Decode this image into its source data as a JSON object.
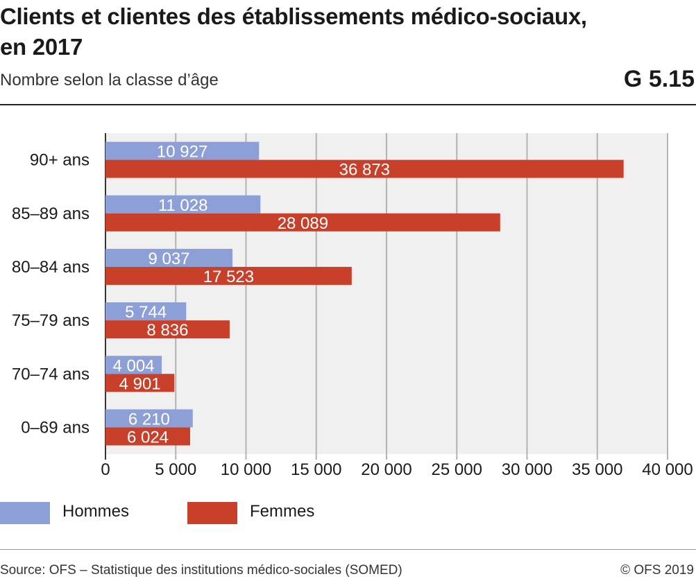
{
  "header": {
    "title": "Clients et clientes des établissements médico-sociaux, en 2017",
    "subtitle": "Nombre selon la classe d’âge",
    "graphic_number": "G 5.15"
  },
  "footer": {
    "source": "Source: OFS – Statistique des institutions médico-sociales (SOMED)",
    "copyright": "© OFS 2019"
  },
  "colors": {
    "hommes": "#8c9fd6",
    "femmes": "#c8402a",
    "plot_bg": "#f0f0f0",
    "grid": "#b3b3b3"
  },
  "chart_data": {
    "type": "bar",
    "orientation": "horizontal",
    "categories": [
      "90+ ans",
      "85–89 ans",
      "80–84 ans",
      "75–79 ans",
      "70–74 ans",
      "0–69 ans"
    ],
    "series": [
      {
        "name": "Hommes",
        "values": [
          10927,
          11028,
          9037,
          5744,
          4004,
          6210
        ],
        "labels": [
          "10 927",
          "11 028",
          "9 037",
          "5 744",
          "4 004",
          "6 210"
        ]
      },
      {
        "name": "Femmes",
        "values": [
          36873,
          28089,
          17523,
          8836,
          4901,
          6024
        ],
        "labels": [
          "36 873",
          "28 089",
          "17 523",
          "8 836",
          "4 901",
          "6 024"
        ]
      }
    ],
    "xlim": [
      0,
      40000
    ],
    "xticks": [
      0,
      5000,
      10000,
      15000,
      20000,
      25000,
      30000,
      35000,
      40000
    ],
    "xtick_labels": [
      "0",
      "5 000",
      "10 000",
      "15 000",
      "20 000",
      "25 000",
      "30 000",
      "35 000",
      "40 000"
    ],
    "grid": true,
    "legend_position": "bottom-left"
  }
}
